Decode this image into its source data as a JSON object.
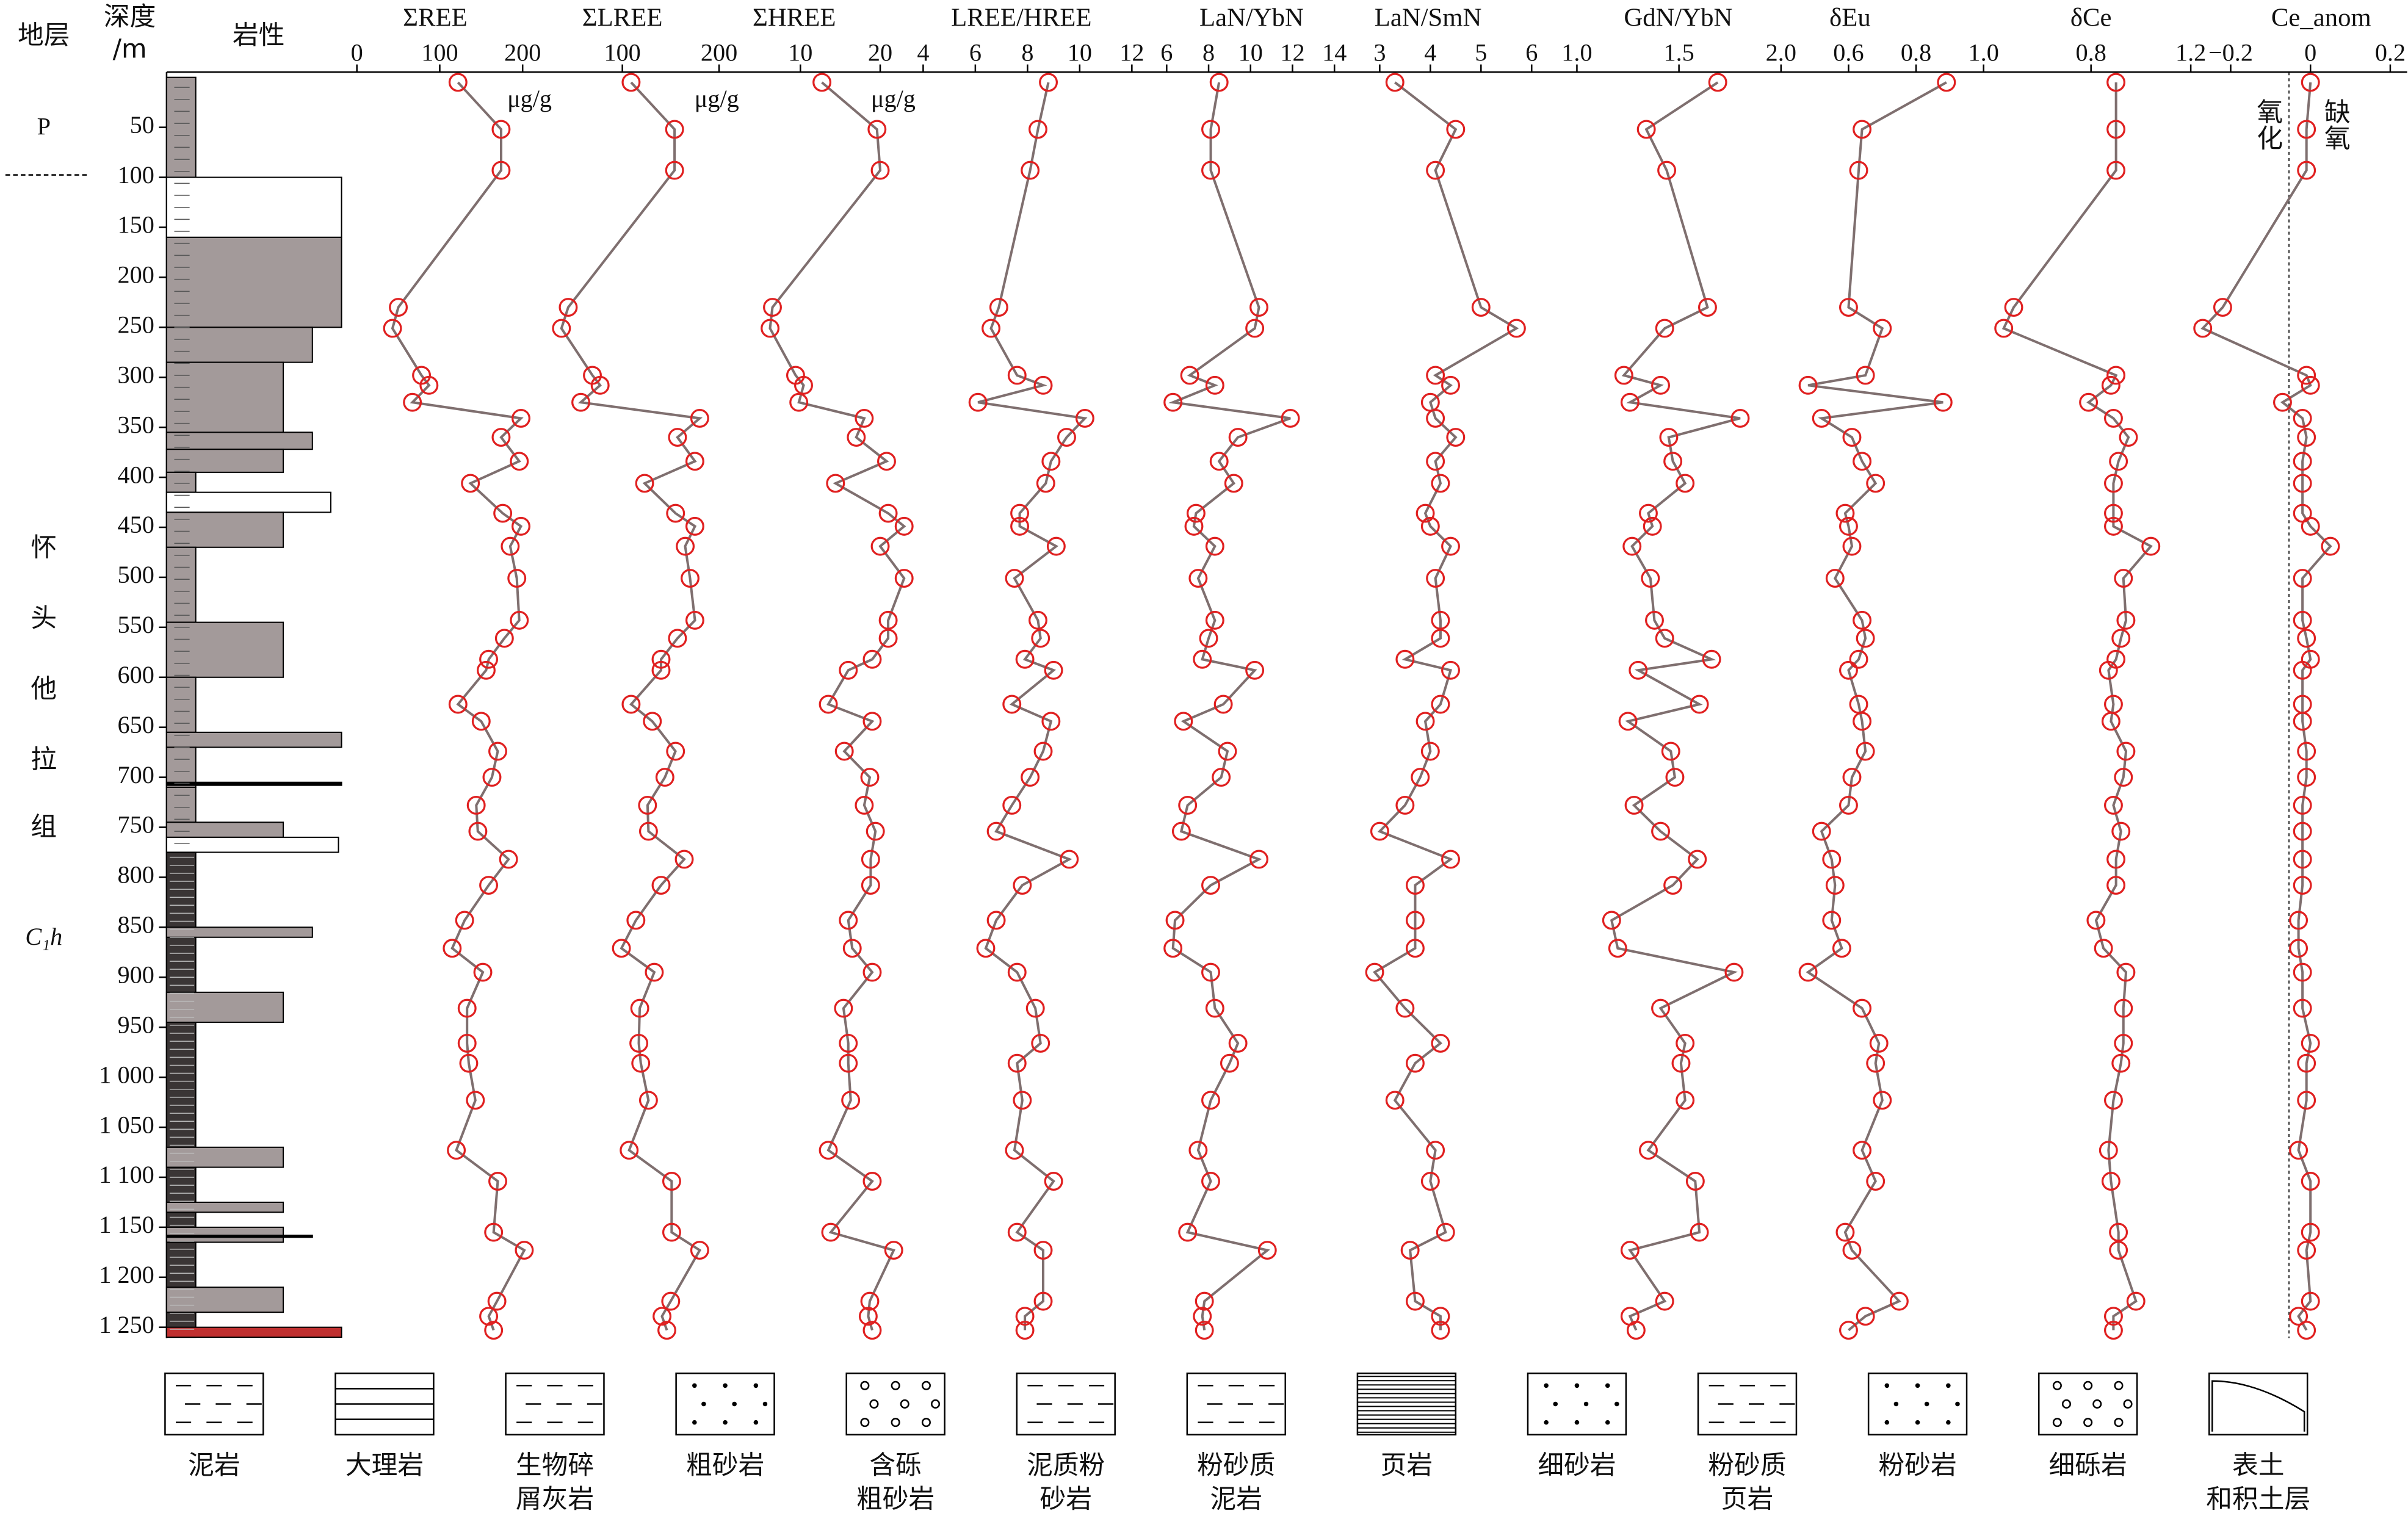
{
  "chart_data": {
    "type": "profile",
    "strata_header": "地层",
    "depth_header": [
      "深度",
      "/m"
    ],
    "lithology_header": "岩性",
    "strata_labels": {
      "upper": "P",
      "formation": [
        "怀",
        "头",
        "他",
        "拉",
        "组"
      ],
      "code": "C₁h"
    },
    "annotations": [
      "氧化",
      "缺氧"
    ],
    "line_color": "#7f6f6f",
    "marker_color": "#e02020",
    "ylim": [
      0,
      1260
    ],
    "yticks": [
      50,
      100,
      150,
      200,
      250,
      300,
      350,
      400,
      450,
      500,
      550,
      600,
      650,
      700,
      750,
      800,
      850,
      900,
      950,
      {
        "value": 1000,
        "label": "1 000"
      },
      {
        "value": 1050,
        "label": "1 050"
      },
      {
        "value": 1100,
        "label": "1 100"
      },
      {
        "value": 1150,
        "label": "1 150"
      },
      {
        "value": 1200,
        "label": "1 200"
      },
      {
        "value": 1250,
        "label": "1 250"
      }
    ],
    "depths": [
      5,
      52,
      93,
      230,
      251,
      298,
      308,
      325,
      341,
      360,
      384,
      406,
      436,
      449,
      469,
      501,
      543,
      561,
      582,
      593,
      627,
      644,
      674,
      700,
      728,
      754,
      782,
      808,
      843,
      871,
      895,
      931,
      966,
      986,
      1023,
      1073,
      1104,
      1155,
      1173,
      1224,
      1239,
      1253
    ],
    "series": [
      {
        "name": "ΣREE",
        "unit": "μg/g",
        "xlim": [
          0,
          200
        ],
        "xticks": [
          0,
          100,
          200
        ],
        "values": [
          122,
          174,
          174,
          50,
          43,
          78,
          87,
          67,
          198,
          174,
          196,
          137,
          176,
          198,
          185,
          193,
          196,
          178,
          159,
          156,
          122,
          150,
          170,
          163,
          144,
          146,
          183,
          159,
          130,
          115,
          152,
          133,
          133,
          135,
          143,
          120,
          170,
          165,
          202,
          169,
          159,
          165
        ]
      },
      {
        "name": "ΣLREE",
        "unit": "μg/g",
        "xlim": [
          0,
          200
        ],
        "xticks": [
          100,
          200
        ],
        "values": [
          109,
          154,
          154,
          44,
          37,
          69,
          77,
          57,
          180,
          157,
          175,
          123,
          155,
          175,
          165,
          170,
          175,
          157,
          140,
          140,
          109,
          131,
          155,
          144,
          126,
          127,
          164,
          140,
          114,
          99,
          133,
          118,
          117,
          119,
          127,
          107,
          151,
          151,
          180,
          150,
          141,
          146
        ]
      },
      {
        "name": "ΣHREE",
        "unit": "μg/g",
        "xlim": [
          0,
          25
        ],
        "xticks": [
          10,
          20
        ],
        "values": [
          12.7,
          19.6,
          20,
          6.5,
          6.2,
          9.4,
          10.4,
          9.8,
          18,
          17,
          20.8,
          14.4,
          21,
          23,
          20,
          23,
          21,
          21,
          19,
          16,
          13.5,
          19,
          15.5,
          18.7,
          18,
          19.4,
          18.8,
          18.8,
          16,
          16.5,
          19,
          15.4,
          16,
          16,
          16.3,
          13.5,
          19,
          13.8,
          21.7,
          18.7,
          18.5,
          19
        ]
      },
      {
        "name": "LREE/HREE",
        "xlim": [
          4,
          12
        ],
        "xticks": [
          4,
          6,
          8,
          10,
          12
        ],
        "values": [
          8.8,
          8.4,
          8.1,
          6.9,
          6.6,
          7.6,
          8.6,
          6.1,
          10.2,
          9.5,
          8.9,
          8.7,
          7.7,
          7.7,
          9.1,
          7.5,
          8.4,
          8.5,
          7.9,
          9,
          7.4,
          8.9,
          8.6,
          8.1,
          7.4,
          6.8,
          9.6,
          7.8,
          6.8,
          6.4,
          7.6,
          8.3,
          8.5,
          7.6,
          7.8,
          7.5,
          9,
          7.6,
          8.6,
          8.6,
          7.9,
          7.9
        ]
      },
      {
        "name": "LaN/YbN",
        "xlim": [
          5,
          14
        ],
        "xticks": [
          6,
          8,
          10,
          12,
          14
        ],
        "values": [
          8.5,
          8.1,
          8.1,
          10.4,
          10.2,
          7.1,
          8.3,
          6.3,
          11.9,
          9.4,
          8.5,
          9.2,
          7.4,
          7.3,
          8.3,
          7.5,
          8.3,
          8,
          7.7,
          10.2,
          8.7,
          6.8,
          8.9,
          8.6,
          7,
          6.7,
          10.4,
          8.1,
          6.4,
          6.3,
          8.1,
          8.3,
          9.4,
          9,
          8.1,
          7.5,
          8.1,
          7,
          10.8,
          7.8,
          7.7,
          7.8
        ]
      },
      {
        "name": "LaN/SmN",
        "xlim": [
          2.5,
          6.5
        ],
        "xticks": [
          3,
          4,
          5,
          6
        ],
        "values": [
          3.3,
          4.5,
          4.1,
          5,
          5.7,
          4.1,
          4.4,
          4,
          4.1,
          4.5,
          4.1,
          4.2,
          3.9,
          4,
          4.4,
          4.1,
          4.2,
          4.2,
          3.5,
          4.4,
          4.2,
          3.9,
          4,
          3.8,
          3.5,
          3,
          4.4,
          3.7,
          3.7,
          3.7,
          2.9,
          3.5,
          4.2,
          3.7,
          3.3,
          4.1,
          4,
          4.3,
          3.6,
          3.7,
          4.2,
          4.2
        ]
      },
      {
        "name": "GdN/YbN",
        "xlim": [
          1.0,
          2.0
        ],
        "xticks": [
          {
            "value": 1.0,
            "label": "1.0"
          },
          1.5,
          {
            "value": 2.0,
            "label": "2.0"
          }
        ],
        "values": [
          1.69,
          1.34,
          1.44,
          1.64,
          1.43,
          1.23,
          1.41,
          1.26,
          1.8,
          1.45,
          1.47,
          1.53,
          1.35,
          1.37,
          1.27,
          1.36,
          1.38,
          1.43,
          1.66,
          1.3,
          1.6,
          1.25,
          1.46,
          1.48,
          1.28,
          1.41,
          1.59,
          1.47,
          1.17,
          1.2,
          1.77,
          1.41,
          1.53,
          1.51,
          1.53,
          1.35,
          1.58,
          1.6,
          1.26,
          1.43,
          1.26,
          1.29
        ]
      },
      {
        "name": "δEu",
        "xlim": [
          0.4,
          1.0
        ],
        "xticks": [
          0.6,
          0.8,
          {
            "value": 1.0,
            "label": "1.0"
          }
        ],
        "values": [
          0.89,
          0.64,
          0.63,
          0.6,
          0.7,
          0.65,
          0.48,
          0.88,
          0.52,
          0.61,
          0.64,
          0.68,
          0.59,
          0.6,
          0.61,
          0.56,
          0.64,
          0.65,
          0.63,
          0.6,
          0.63,
          0.64,
          0.65,
          0.61,
          0.6,
          0.52,
          0.55,
          0.56,
          0.55,
          0.58,
          0.48,
          0.64,
          0.69,
          0.68,
          0.7,
          0.64,
          0.68,
          0.59,
          0.61,
          0.75,
          0.65,
          0.6
        ]
      },
      {
        "name": "δCe",
        "xlim": [
          0.4,
          1.2
        ],
        "xticks": [
          0.8,
          1.2
        ],
        "values": [
          0.9,
          0.9,
          0.9,
          0.49,
          0.45,
          0.9,
          0.88,
          0.79,
          0.89,
          0.95,
          0.91,
          0.89,
          0.89,
          0.89,
          1.04,
          0.93,
          0.94,
          0.92,
          0.9,
          0.87,
          0.89,
          0.88,
          0.94,
          0.93,
          0.89,
          0.92,
          0.9,
          0.9,
          0.82,
          0.85,
          0.94,
          0.93,
          0.93,
          0.92,
          0.89,
          0.87,
          0.88,
          0.91,
          0.91,
          0.98,
          0.89,
          0.89
        ]
      },
      {
        "name": "Ce_anom",
        "xlim": [
          -0.2,
          0.2
        ],
        "xticks": [
          {
            "value": -0.2,
            "label": "−0.2"
          },
          0,
          0.2
        ],
        "values": [
          0,
          -0.01,
          -0.01,
          -0.22,
          -0.27,
          -0.01,
          0,
          -0.07,
          -0.02,
          -0.01,
          -0.02,
          -0.02,
          -0.02,
          0,
          0.05,
          -0.02,
          -0.02,
          -0.01,
          0,
          -0.02,
          -0.02,
          -0.02,
          -0.01,
          -0.01,
          -0.02,
          -0.02,
          -0.02,
          -0.02,
          -0.03,
          -0.03,
          -0.02,
          -0.02,
          0,
          -0.01,
          -0.01,
          -0.03,
          0,
          0,
          -0.01,
          0,
          -0.03,
          -0.01
        ]
      }
    ],
    "legend": [
      [
        "泥岩"
      ],
      [
        "大理岩"
      ],
      [
        "生物碎",
        "屑灰岩"
      ],
      [
        "粗砂岩"
      ],
      [
        "含砾",
        "粗砂岩"
      ],
      [
        "泥质粉",
        "砂岩"
      ],
      [
        "粉砂质",
        "泥岩"
      ],
      [
        "页岩"
      ],
      [
        "细砂岩"
      ],
      [
        "粉砂质",
        "页岩"
      ],
      [
        "粉砂岩"
      ],
      [
        "细砾岩"
      ],
      [
        "表土",
        "和积土层"
      ]
    ]
  }
}
